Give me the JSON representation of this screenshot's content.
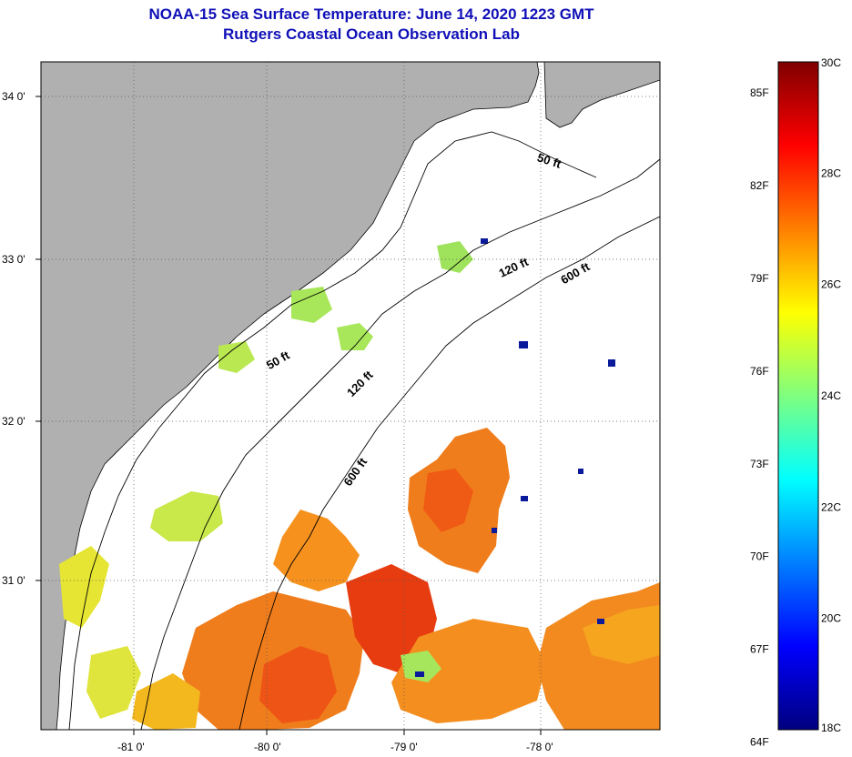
{
  "title": {
    "line1": "NOAA-15 Sea Surface Temperature:  June 14, 2020 1223 GMT",
    "line2": "Rutgers Coastal Ocean Observation Lab"
  },
  "map": {
    "lon_range": [
      -81.7,
      -77.15
    ],
    "lat_range": [
      30.1,
      34.2
    ],
    "lon_ticks": [
      {
        "value": -81,
        "label": "-81 0'"
      },
      {
        "value": -80,
        "label": "-80 0'"
      },
      {
        "value": -79,
        "label": "-79 0'"
      },
      {
        "value": -78,
        "label": "-78 0'"
      }
    ],
    "lat_ticks": [
      {
        "value": 34,
        "label": "34 0'"
      },
      {
        "value": 33,
        "label": "33 0'"
      },
      {
        "value": 32,
        "label": "32 0'"
      },
      {
        "value": 31,
        "label": "31 0'"
      }
    ],
    "contour_labels": [
      "50 ft",
      "120 ft",
      "600 ft"
    ],
    "land_color": "#b0b0b0",
    "ocean_color": "#ffffff"
  },
  "colorbar": {
    "celsius_range": [
      18,
      30
    ],
    "celsius_labels": [
      "30C",
      "28C",
      "26C",
      "24C",
      "22C",
      "20C",
      "18C"
    ],
    "fahrenheit_labels": [
      "85F",
      "82F",
      "79F",
      "76F",
      "73F",
      "70F",
      "67F",
      "64F"
    ],
    "colors": [
      "#00007f",
      "#0000ff",
      "#007fff",
      "#00ffff",
      "#7fff7f",
      "#ffff00",
      "#ff7f00",
      "#ff0000",
      "#7f0000"
    ]
  }
}
